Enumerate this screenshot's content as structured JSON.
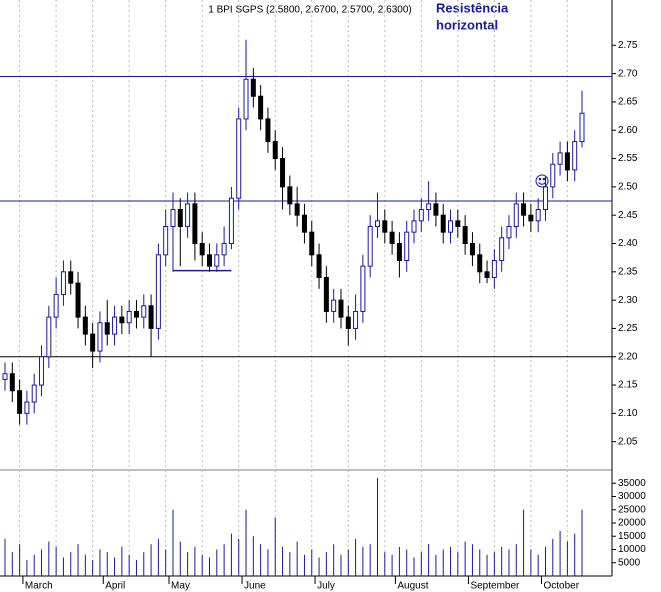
{
  "chart_data": {
    "type": "candlestick",
    "title": "1 BPI SGPS (2.5800, 2.6700, 2.5700, 2.6300)",
    "annotation": [
      "Resistência",
      "horizontal"
    ],
    "categories": [
      null,
      null,
      null,
      "March",
      null,
      null,
      null,
      null,
      null,
      null,
      null,
      null,
      null,
      null,
      "April",
      null,
      null,
      null,
      null,
      null,
      null,
      null,
      null,
      "May",
      null,
      null,
      null,
      null,
      null,
      null,
      null,
      null,
      null,
      "June",
      null,
      null,
      null,
      null,
      null,
      null,
      null,
      null,
      null,
      "July",
      null,
      null,
      null,
      null,
      null,
      null,
      null,
      null,
      null,
      null,
      "August",
      null,
      null,
      null,
      null,
      null,
      null,
      null,
      null,
      null,
      "September",
      null,
      null,
      null,
      null,
      null,
      null,
      null,
      null,
      null,
      "October",
      null,
      null,
      null,
      null,
      null
    ],
    "open": [
      2.16,
      2.17,
      2.14,
      2.1,
      2.12,
      2.15,
      2.2,
      2.27,
      2.31,
      2.35,
      2.33,
      2.27,
      2.24,
      2.21,
      2.26,
      2.24,
      2.27,
      2.26,
      2.28,
      2.27,
      2.29,
      2.25,
      2.38,
      2.43,
      2.46,
      2.43,
      2.47,
      2.4,
      2.38,
      2.36,
      2.38,
      2.4,
      2.48,
      2.62,
      2.69,
      2.66,
      2.62,
      2.58,
      2.55,
      2.5,
      2.47,
      2.45,
      2.42,
      2.38,
      2.34,
      2.28,
      2.3,
      2.27,
      2.25,
      2.28,
      2.36,
      2.43,
      2.44,
      2.42,
      2.4,
      2.37,
      2.42,
      2.44,
      2.46,
      2.47,
      2.45,
      2.42,
      2.44,
      2.43,
      2.4,
      2.38,
      2.35,
      2.34,
      2.37,
      2.41,
      2.43,
      2.47,
      2.45,
      2.44,
      2.46,
      2.5,
      2.54,
      2.56,
      2.53,
      2.58
    ],
    "high": [
      2.19,
      2.19,
      2.16,
      2.14,
      2.17,
      2.22,
      2.29,
      2.34,
      2.37,
      2.37,
      2.35,
      2.29,
      2.26,
      2.28,
      2.3,
      2.29,
      2.29,
      2.3,
      2.3,
      2.31,
      2.31,
      2.4,
      2.46,
      2.49,
      2.48,
      2.49,
      2.49,
      2.42,
      2.4,
      2.4,
      2.43,
      2.5,
      2.64,
      2.76,
      2.71,
      2.68,
      2.64,
      2.6,
      2.57,
      2.52,
      2.5,
      2.47,
      2.44,
      2.4,
      2.36,
      2.32,
      2.32,
      2.29,
      2.31,
      2.38,
      2.45,
      2.49,
      2.46,
      2.44,
      2.42,
      2.44,
      2.46,
      2.48,
      2.51,
      2.49,
      2.47,
      2.46,
      2.46,
      2.45,
      2.42,
      2.4,
      2.37,
      2.39,
      2.43,
      2.45,
      2.49,
      2.49,
      2.47,
      2.48,
      2.52,
      2.56,
      2.58,
      2.58,
      2.6,
      2.67
    ],
    "low": [
      2.14,
      2.12,
      2.08,
      2.08,
      2.1,
      2.13,
      2.18,
      2.25,
      2.29,
      2.31,
      2.25,
      2.22,
      2.18,
      2.19,
      2.22,
      2.22,
      2.24,
      2.24,
      2.25,
      2.25,
      2.2,
      2.23,
      2.36,
      2.35,
      2.36,
      2.41,
      2.37,
      2.36,
      2.35,
      2.35,
      2.36,
      2.39,
      2.46,
      2.6,
      2.64,
      2.6,
      2.56,
      2.53,
      2.46,
      2.45,
      2.43,
      2.4,
      2.36,
      2.32,
      2.26,
      2.26,
      2.25,
      2.22,
      2.23,
      2.26,
      2.34,
      2.41,
      2.4,
      2.38,
      2.34,
      2.35,
      2.4,
      2.42,
      2.44,
      2.43,
      2.4,
      2.4,
      2.41,
      2.38,
      2.36,
      2.33,
      2.33,
      2.32,
      2.35,
      2.39,
      2.41,
      2.43,
      2.42,
      2.42,
      2.44,
      2.48,
      2.52,
      2.51,
      2.51,
      2.57
    ],
    "close": [
      2.17,
      2.14,
      2.1,
      2.12,
      2.15,
      2.2,
      2.27,
      2.31,
      2.35,
      2.33,
      2.27,
      2.24,
      2.21,
      2.26,
      2.24,
      2.27,
      2.26,
      2.28,
      2.27,
      2.29,
      2.25,
      2.38,
      2.43,
      2.46,
      2.43,
      2.47,
      2.4,
      2.38,
      2.36,
      2.38,
      2.4,
      2.48,
      2.62,
      2.69,
      2.66,
      2.62,
      2.58,
      2.55,
      2.5,
      2.47,
      2.45,
      2.42,
      2.38,
      2.34,
      2.28,
      2.3,
      2.27,
      2.25,
      2.28,
      2.36,
      2.43,
      2.44,
      2.42,
      2.4,
      2.37,
      2.42,
      2.44,
      2.46,
      2.47,
      2.45,
      2.42,
      2.44,
      2.43,
      2.4,
      2.38,
      2.35,
      2.34,
      2.37,
      2.41,
      2.43,
      2.47,
      2.45,
      2.44,
      2.46,
      2.5,
      2.54,
      2.56,
      2.53,
      2.58,
      2.63
    ],
    "volume": [
      14000,
      9000,
      12000,
      6000,
      8000,
      10000,
      13000,
      11000,
      7000,
      9000,
      12000,
      8000,
      6000,
      10000,
      9000,
      7000,
      11000,
      8000,
      6000,
      9000,
      12000,
      14000,
      10000,
      25000,
      13000,
      9000,
      11000,
      8000,
      7000,
      10000,
      12000,
      16000,
      14000,
      25000,
      15000,
      12000,
      10000,
      22000,
      11000,
      9000,
      13000,
      8000,
      10000,
      7000,
      9000,
      12000,
      8000,
      10000,
      14000,
      11000,
      12000,
      37000,
      9000,
      8000,
      11000,
      10000,
      7000,
      9000,
      12000,
      8000,
      10000,
      11000,
      9000,
      13000,
      12000,
      10000,
      8000,
      9000,
      11000,
      10000,
      12000,
      25000,
      10000,
      8000,
      11000,
      14000,
      17000,
      13000,
      16000,
      25000
    ],
    "up_color": "#1a1aa0",
    "down_color": "#000000",
    "ylim": [
      2.0,
      2.83
    ],
    "yticks": [
      2.05,
      {
        "value": 2.1,
        "label": "2.10"
      },
      2.15,
      {
        "value": 2.2,
        "label": "2.20"
      },
      2.25,
      {
        "value": 2.3,
        "label": "2.30"
      },
      2.35,
      {
        "value": 2.4,
        "label": "2.40"
      },
      2.45,
      {
        "value": 2.5,
        "label": "2.50"
      },
      2.55,
      {
        "value": 2.6,
        "label": "2.60"
      },
      2.65,
      {
        "value": 2.7,
        "label": "2.70"
      },
      2.75
    ],
    "vol_ylim": [
      0,
      40000
    ],
    "vol_yticks": [
      5000,
      10000,
      15000,
      20000,
      25000,
      30000,
      35000
    ],
    "hlines": [
      {
        "value": 2.695,
        "color": "#1a1aa0"
      },
      {
        "value": 2.475,
        "color": "#1a1aa0"
      },
      {
        "value": 2.2,
        "color": "#000000"
      }
    ],
    "support": {
      "value": 2.352,
      "start": 23,
      "end": 31,
      "color": "#1a1aa0"
    }
  }
}
